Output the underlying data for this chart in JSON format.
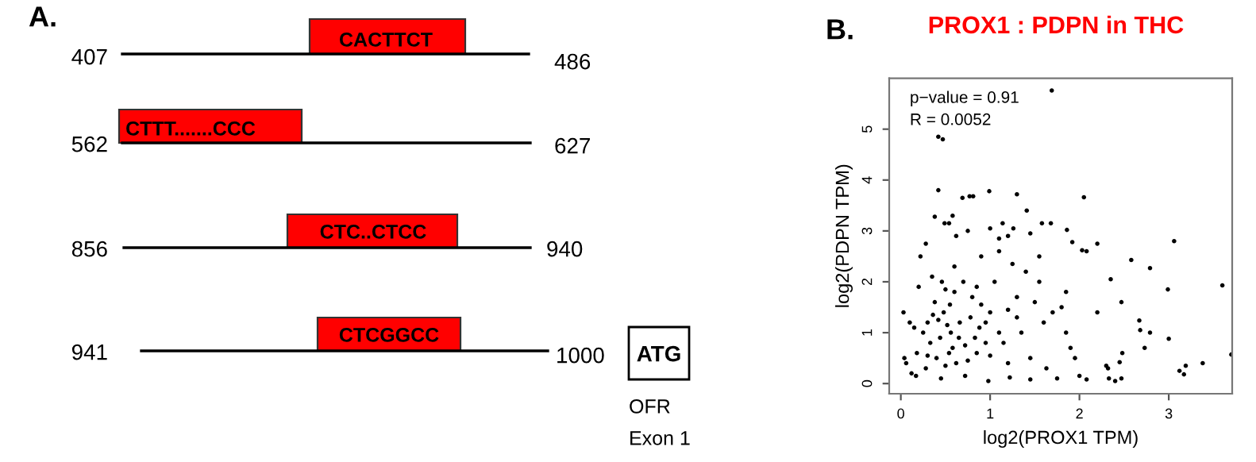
{
  "chart_data": [
    {
      "type": "other",
      "annotations": [
        "A.",
        "407",
        "486",
        "CACTTCT",
        "562",
        "627",
        "CTTT.......CCC",
        "856",
        "940",
        "CTC..CTCC",
        "941",
        "1000",
        "CTCGGCC",
        "ATG",
        "OFR",
        "Exon 1"
      ]
    },
    {
      "type": "scatter",
      "title": "PROX1 : PDPN in THC",
      "xlabel": "log2(PROX1 TPM)",
      "ylabel": "log2(PDPN TPM)",
      "annotations": [
        "B.",
        "p−value = 0.91",
        "R = 0.0052"
      ],
      "xlim": [
        -0.13,
        3.71
      ],
      "ylim": [
        -0.2,
        6.0
      ],
      "xticks": [
        0,
        1,
        2,
        3
      ],
      "yticks": [
        0,
        1,
        2,
        3,
        4,
        5
      ],
      "grid": false,
      "legend": false,
      "marker": "circle",
      "series": [
        {
          "color": "#000000",
          "x": [
            1.69,
            0.42,
            0.47,
            0.42,
            0.99,
            0.69,
            0.77,
            0.81,
            1.3,
            2.05,
            1.41,
            0.38,
            0.58,
            0.54,
            0.49,
            1.0,
            0.75,
            1.58,
            1.68,
            1.86,
            1.14,
            1.26,
            0.28,
            0.62,
            1.1,
            1.2,
            1.45,
            1.92,
            2.03,
            2.08,
            2.2,
            3.06,
            2.58,
            2.79,
            2.99,
            3.6,
            2.35,
            2.2,
            2.47,
            2.67,
            2.68,
            2.79,
            2.73,
            3.0,
            3.12,
            3.17,
            3.19,
            3.38,
            3.7,
            2.3,
            2.33,
            2.4,
            2.45,
            2.48,
            2.47,
            2.32,
            2.08,
            2.0,
            1.95,
            1.9,
            1.85,
            1.8,
            1.85,
            1.7,
            1.6,
            1.55,
            1.55,
            1.5,
            1.4,
            1.3,
            1.3,
            1.25,
            1.2,
            1.15,
            1.1,
            1.05,
            1.0,
            0.95,
            0.9,
            0.88,
            0.85,
            0.83,
            0.8,
            0.78,
            0.72,
            0.7,
            0.66,
            0.62,
            0.6,
            0.56,
            0.54,
            0.52,
            0.5,
            0.48,
            0.46,
            0.44,
            0.42,
            0.4,
            0.38,
            0.35,
            0.33,
            0.3,
            0.28,
            0.25,
            0.22,
            0.2,
            0.18,
            0.15,
            0.12,
            0.1,
            0.06,
            0.03,
            0.04,
            0.17,
            0.45,
            0.72,
            0.98,
            1.22,
            1.45,
            1.63,
            1.75,
            0.6,
            0.9,
            1.1,
            1.35,
            1.45,
            0.85,
            0.3,
            0.55,
            0.65,
            1.0,
            1.2,
            0.75,
            0.95,
            0.58,
            0.36,
            0.5
          ],
          "values": [
            5.76,
            4.85,
            4.8,
            3.8,
            3.78,
            3.65,
            3.68,
            3.68,
            3.72,
            3.66,
            3.4,
            3.28,
            3.3,
            3.15,
            3.15,
            3.05,
            3.0,
            3.15,
            3.15,
            3.02,
            3.15,
            3.05,
            2.75,
            2.9,
            2.85,
            2.9,
            2.95,
            2.78,
            2.62,
            2.6,
            2.75,
            2.8,
            2.43,
            2.27,
            1.85,
            1.93,
            2.05,
            1.4,
            1.6,
            1.24,
            1.05,
            1.0,
            0.7,
            0.88,
            0.25,
            0.18,
            0.35,
            0.4,
            0.57,
            0.35,
            0.1,
            0.05,
            0.42,
            0.6,
            0.1,
            0.3,
            0.08,
            0.15,
            0.5,
            0.7,
            1.0,
            1.5,
            1.8,
            1.4,
            1.2,
            2.0,
            2.5,
            1.6,
            2.2,
            1.3,
            1.7,
            2.35,
            1.45,
            0.8,
            1.0,
            2.0,
            0.55,
            1.2,
            1.55,
            1.1,
            0.6,
            0.9,
            1.7,
            1.3,
            0.75,
            2.0,
            1.2,
            0.4,
            1.8,
            1.0,
            0.6,
            1.15,
            0.35,
            1.4,
            2.0,
            0.9,
            1.25,
            0.5,
            1.6,
            2.1,
            0.8,
            1.2,
            0.3,
            1.0,
            2.5,
            1.9,
            0.6,
            1.1,
            0.2,
            1.2,
            0.4,
            1.4,
            0.5,
            0.15,
            0.1,
            0.15,
            0.05,
            0.12,
            0.08,
            0.3,
            0.1,
            2.3,
            2.5,
            2.6,
            1.0,
            0.5,
            1.9,
            0.55,
            1.55,
            0.9,
            1.4,
            0.4,
            0.45,
            0.8,
            0.7,
            1.35,
            1.85
          ]
        }
      ]
    }
  ]
}
